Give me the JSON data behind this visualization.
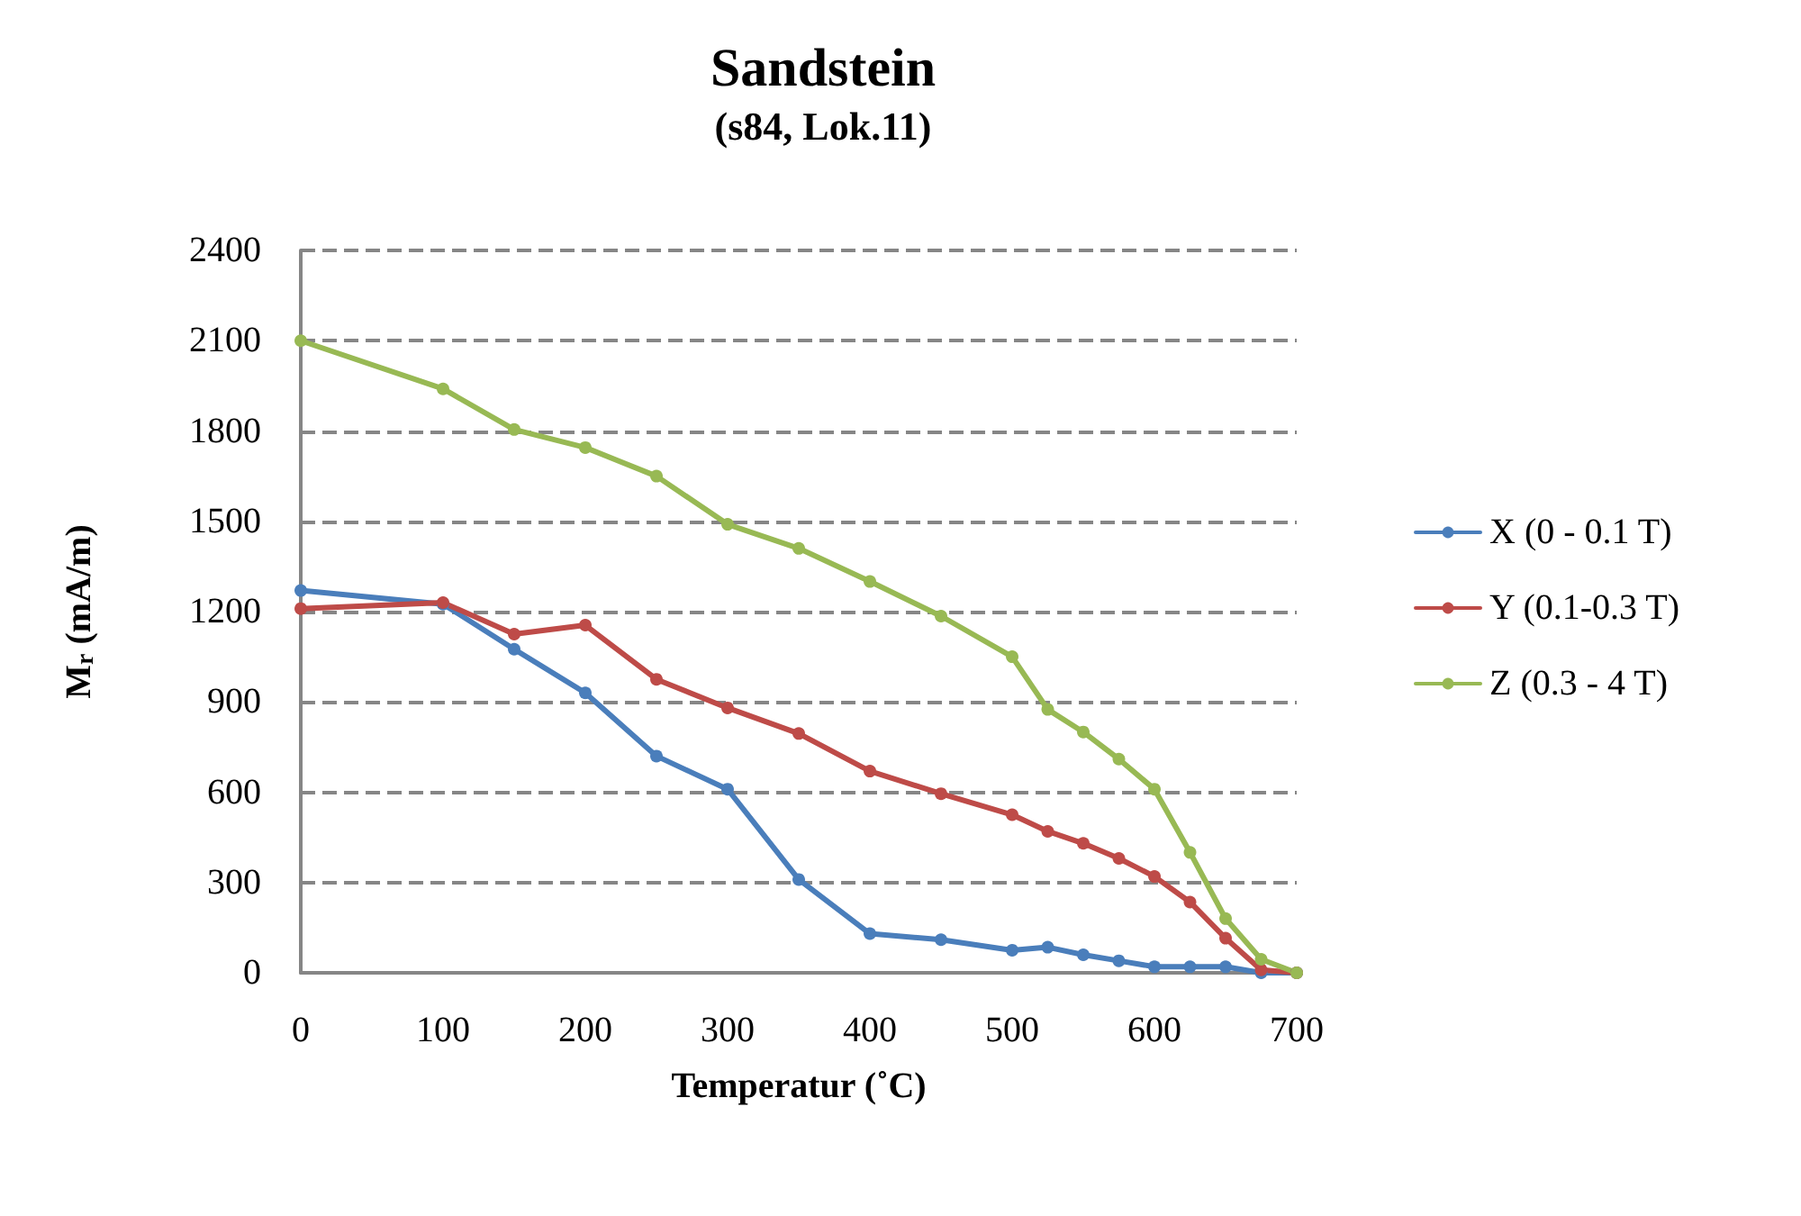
{
  "chart_data": {
    "type": "line",
    "title": "Sandstein",
    "subtitle": "(s84, Lok.11)",
    "xlabel": "Temperatur (˚C)",
    "ylabel": "M$_{r}$ (mA/m)",
    "x": [
      0,
      100,
      150,
      200,
      250,
      300,
      350,
      400,
      450,
      500,
      525,
      550,
      575,
      600,
      625,
      650,
      675,
      700
    ],
    "series": [
      {
        "name": "X (0 - 0.1 T)",
        "color": "#4a7ebb",
        "values": [
          1270,
          1225,
          1075,
          930,
          720,
          610,
          310,
          130,
          110,
          75,
          85,
          60,
          40,
          20,
          20,
          20,
          0,
          0
        ]
      },
      {
        "name": "Y (0.1-0.3 T)",
        "color": "#be4b48",
        "values": [
          1210,
          1230,
          1125,
          1155,
          975,
          880,
          795,
          670,
          595,
          525,
          470,
          430,
          380,
          320,
          235,
          115,
          10,
          0
        ]
      },
      {
        "name": "Z (0.3 - 4 T)",
        "color": "#98b954",
        "values": [
          2100,
          1940,
          1805,
          1745,
          1650,
          1490,
          1410,
          1300,
          1185,
          1050,
          875,
          800,
          710,
          610,
          400,
          180,
          45,
          0
        ]
      }
    ],
    "xlim": [
      0,
      700
    ],
    "xticks": [
      0,
      100,
      200,
      300,
      400,
      500,
      600,
      700
    ],
    "ylim": [
      0,
      2400
    ],
    "yticks": [
      0,
      300,
      600,
      900,
      1200,
      1500,
      1800,
      2100,
      2400
    ],
    "grid": "y",
    "legend": "right",
    "marker": "circle",
    "line_style": "solid"
  }
}
